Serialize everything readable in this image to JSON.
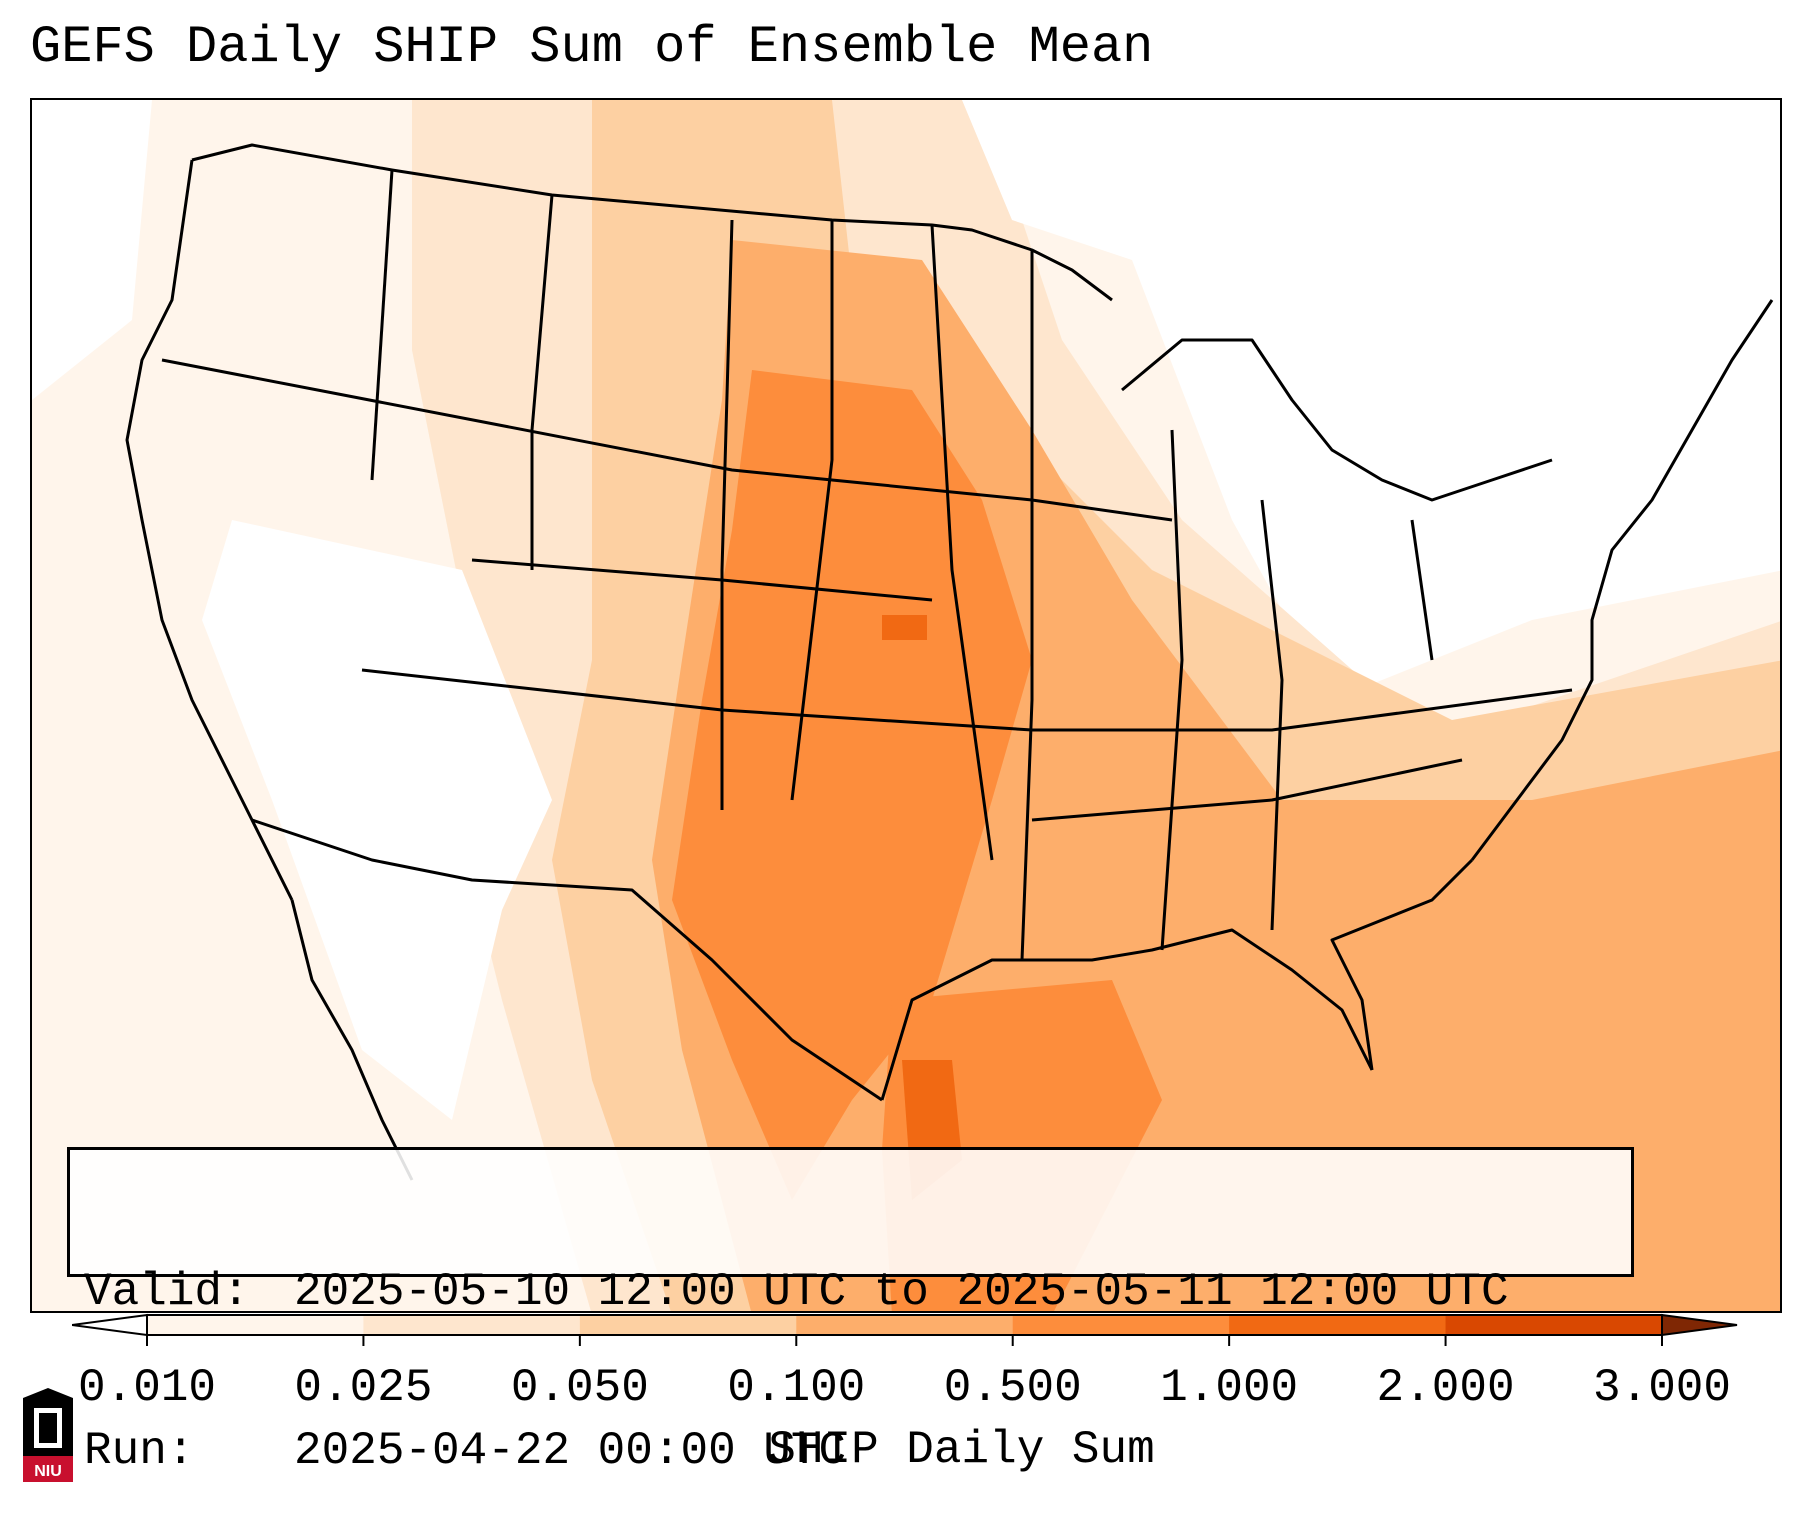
{
  "title": "GEFS Daily SHIP Sum of Ensemble Mean",
  "info": {
    "valid_label": "Valid:",
    "valid_value": "2025-05-10 12:00 UTC to 2025-05-11 12:00 UTC",
    "run_label": "Run:",
    "run_value": "2025-04-22 00:00 UTC"
  },
  "colorbar": {
    "label": "SHIP Daily Sum",
    "ticks": [
      "0.010",
      "0.025",
      "0.050",
      "0.100",
      "0.500",
      "1.000",
      "2.000",
      "3.000"
    ],
    "colors": [
      "#fff5eb",
      "#fee6ce",
      "#fdd0a2",
      "#fdae6b",
      "#fd8d3c",
      "#f16913",
      "#d94801",
      "#a63603"
    ],
    "extend": "both"
  },
  "logo": {
    "text": "NIU"
  }
}
